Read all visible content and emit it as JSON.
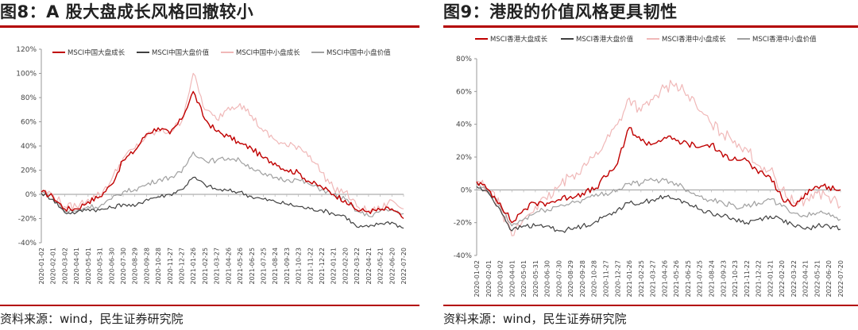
{
  "panels": [
    {
      "title": "图8：A 股大盘成长风格回撤较小",
      "source": "资料来源：wind，民生证券研究院",
      "chart_data": {
        "type": "line",
        "title": "图8：A 股大盘成长风格回撤较小",
        "xlabel": "",
        "ylabel": "",
        "ylim": [
          -40,
          120
        ],
        "yticks": [
          -40,
          -20,
          0,
          20,
          40,
          60,
          80,
          100,
          120
        ],
        "ytick_labels": [
          "-40%",
          "-20%",
          "0%",
          "20%",
          "40%",
          "60%",
          "80%",
          "100%",
          "120%"
        ],
        "x": [
          "2020-01-02",
          "2020-02-01",
          "2020-03-02",
          "2020-04-01",
          "2020-05-01",
          "2020-05-31",
          "2020-06-30",
          "2020-07-30",
          "2020-08-29",
          "2020-09-28",
          "2020-10-28",
          "2020-11-27",
          "2020-12-27",
          "2021-01-26",
          "2021-02-25",
          "2021-03-27",
          "2021-04-26",
          "2021-05-26",
          "2021-06-25",
          "2021-07-25",
          "2021-08-24",
          "2021-09-23",
          "2021-10-23",
          "2021-11-22",
          "2021-12-22",
          "2022-01-21",
          "2022-02-20",
          "2022-03-22",
          "2022-04-21",
          "2022-05-21",
          "2022-06-20",
          "2022-07-20"
        ],
        "legend_position": "top",
        "grid": false,
        "series": [
          {
            "name": "MSCI中国大盘成长",
            "color": "#c00000",
            "values": [
              2,
              -2,
              -12,
              -12,
              -6,
              -2,
              8,
              28,
              36,
              50,
              55,
              50,
              62,
              85,
              62,
              52,
              48,
              42,
              38,
              30,
              26,
              20,
              18,
              10,
              6,
              0,
              -5,
              -13,
              -14,
              -13,
              -12,
              -20
            ]
          },
          {
            "name": "MSCI中国大盘价值",
            "color": "#404040",
            "values": [
              1,
              -4,
              -15,
              -15,
              -12,
              -13,
              -11,
              -8,
              -10,
              -4,
              -2,
              0,
              4,
              14,
              8,
              4,
              3,
              2,
              -2,
              -4,
              -6,
              -8,
              -10,
              -12,
              -13,
              -16,
              -18,
              -27,
              -27,
              -24,
              -23,
              -28
            ]
          },
          {
            "name": "MSCI中国中小盘成长",
            "color": "#f0b8b8",
            "values": [
              3,
              0,
              -10,
              -10,
              -4,
              0,
              12,
              30,
              38,
              48,
              52,
              52,
              60,
              100,
              70,
              62,
              72,
              75,
              65,
              52,
              45,
              40,
              40,
              32,
              18,
              5,
              2,
              -10,
              -14,
              -12,
              -5,
              -12
            ]
          },
          {
            "name": "MSCI中国中小盘价值",
            "color": "#a0a0a0",
            "values": [
              2,
              -2,
              -14,
              -14,
              -10,
              -10,
              -4,
              2,
              4,
              8,
              12,
              14,
              18,
              35,
              28,
              28,
              30,
              28,
              22,
              16,
              14,
              12,
              12,
              8,
              4,
              0,
              -4,
              -14,
              -18,
              -14,
              -13,
              -16
            ]
          }
        ]
      }
    },
    {
      "title": "图9：港股的价值风格更具韧性",
      "source": "资料来源：wind，民生证券研究院",
      "chart_data": {
        "type": "line",
        "title": "图9：港股的价值风格更具韧性",
        "xlabel": "",
        "ylabel": "",
        "ylim": [
          -40,
          80
        ],
        "yticks": [
          -40,
          -20,
          0,
          20,
          40,
          60,
          80
        ],
        "ytick_labels": [
          "-40%",
          "-20%",
          "0%",
          "20%",
          "40%",
          "60%",
          "80%"
        ],
        "x": [
          "2020-01-02",
          "2020-02-01",
          "2020-03-02",
          "2020-04-01",
          "2020-05-01",
          "2020-05-31",
          "2020-06-30",
          "2020-07-30",
          "2020-08-29",
          "2020-09-28",
          "2020-10-28",
          "2020-11-27",
          "2020-12-27",
          "2021-01-26",
          "2021-02-25",
          "2021-03-27",
          "2021-04-26",
          "2021-05-26",
          "2021-06-25",
          "2021-07-25",
          "2021-08-24",
          "2021-09-23",
          "2021-10-23",
          "2021-11-22",
          "2021-12-22",
          "2022-01-21",
          "2022-02-20",
          "2022-03-22",
          "2022-04-21",
          "2022-05-21",
          "2022-06-20",
          "2022-07-20"
        ],
        "legend_position": "top",
        "grid": false,
        "series": [
          {
            "name": "MSCI香港大盘成长",
            "color": "#c00000",
            "values": [
              5,
              0,
              -8,
              -20,
              -12,
              -8,
              -8,
              -6,
              -4,
              -2,
              0,
              8,
              16,
              38,
              30,
              28,
              32,
              30,
              28,
              26,
              28,
              20,
              20,
              18,
              10,
              8,
              -5,
              -10,
              -2,
              2,
              2,
              0
            ]
          },
          {
            "name": "MSCI香港大盘价值",
            "color": "#404040",
            "values": [
              2,
              -2,
              -12,
              -25,
              -22,
              -22,
              -22,
              -25,
              -24,
              -22,
              -20,
              -16,
              -12,
              -8,
              -8,
              -6,
              -4,
              -6,
              -8,
              -12,
              -14,
              -16,
              -18,
              -20,
              -18,
              -16,
              -18,
              -22,
              -24,
              -22,
              -22,
              -24
            ]
          },
          {
            "name": "MSCI香港中小盘成长",
            "color": "#f0b8b8",
            "values": [
              5,
              0,
              -10,
              -28,
              -18,
              -10,
              -6,
              2,
              8,
              14,
              20,
              30,
              40,
              56,
              48,
              55,
              62,
              65,
              58,
              48,
              40,
              34,
              30,
              25,
              15,
              12,
              0,
              -8,
              -6,
              -2,
              -4,
              -10
            ]
          },
          {
            "name": "MSCI香港中小盘价值",
            "color": "#a0a0a0",
            "values": [
              3,
              -1,
              -10,
              -22,
              -18,
              -14,
              -12,
              -10,
              -8,
              -6,
              -4,
              -2,
              0,
              4,
              4,
              6,
              6,
              4,
              0,
              -4,
              -6,
              -8,
              -10,
              -10,
              -8,
              -6,
              -10,
              -14,
              -16,
              -14,
              -14,
              -18
            ]
          }
        ]
      }
    }
  ],
  "accent_color": "#b30000"
}
